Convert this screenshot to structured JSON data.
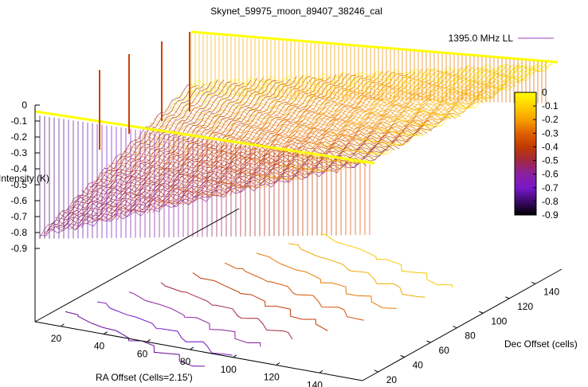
{
  "chart_data": {
    "type": "surface3d",
    "title": "Skynet_59975_moon_89407_38246_cal",
    "zlabel": "Intensity (K)",
    "xlabel": "RA Offset (Cells=2.15')",
    "ylabel": "Dec Offset (cells)",
    "legend": {
      "label": "1395.0 MHz LL",
      "position": "top-right"
    },
    "z_range": [
      -0.9,
      0
    ],
    "z_ticks": [
      "0",
      "-0.1",
      "-0.2",
      "-0.3",
      "-0.4",
      "-0.5",
      "-0.6",
      "-0.7",
      "-0.8",
      "-0.9"
    ],
    "x_ticks": [
      "20",
      "40",
      "60",
      "80",
      "100",
      "120",
      "140"
    ],
    "y_ticks": [
      "20",
      "40",
      "60",
      "80",
      "100",
      "120",
      "140"
    ],
    "colorbar": {
      "ticks": [
        "0",
        "-0.1",
        "-0.2",
        "-0.3",
        "-0.4",
        "-0.5",
        "-0.6",
        "-0.7",
        "-0.8",
        "-0.9"
      ],
      "stops": [
        "#ffff00",
        "#ffd000",
        "#f8a000",
        "#e06000",
        "#c03a00",
        "#a02840",
        "#8a20a0",
        "#7a18c8",
        "#3c0a6a",
        "#000000"
      ]
    },
    "contours": [
      {
        "level": -0.8,
        "color": "#6a0a9a"
      },
      {
        "level": -0.7,
        "color": "#7a18c8"
      },
      {
        "level": -0.6,
        "color": "#8a20a0"
      },
      {
        "level": -0.5,
        "color": "#a02840"
      },
      {
        "level": -0.4,
        "color": "#c03a00"
      },
      {
        "level": -0.3,
        "color": "#d85000"
      },
      {
        "level": -0.2,
        "color": "#e87800"
      },
      {
        "level": -0.1,
        "color": "#f0a800"
      },
      {
        "level": -0.05,
        "color": "#f8c800"
      }
    ],
    "grid": false
  }
}
